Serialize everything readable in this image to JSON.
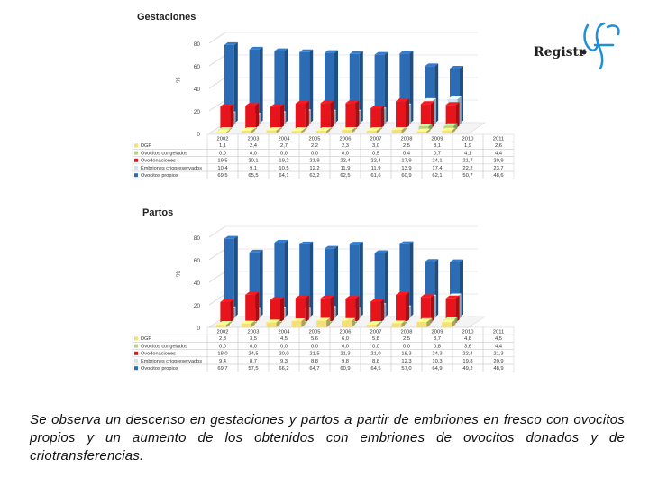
{
  "logo": {
    "text": "Registr",
    "accent": "#1f8fd6"
  },
  "caption": "Se observa un descenso en gestaciones y partos a partir de embriones en fresco con ovocitos propios y un aumento de los obtenidos con embriones de ovocitos donados y de criotransferencias.",
  "colors": {
    "DGP": "#f3e07a",
    "Ovocitos congelados": "#b5d38a",
    "Ovodonaciones": "#e8141b",
    "Embriones criopreservados": "#cfe3f3",
    "Ovocitos propios": "#2b6cb5"
  },
  "chart_data": [
    {
      "type": "bar",
      "title": "Gestaciones",
      "ylabel": "%",
      "ylim": [
        0,
        100
      ],
      "yticks": [
        0,
        20,
        40,
        60,
        80
      ],
      "categories": [
        "2002",
        "2003",
        "2004",
        "2005",
        "2006",
        "2007",
        "2008",
        "2009",
        "2010",
        "2011"
      ],
      "series": [
        {
          "name": "DGP",
          "values": [
            1.1,
            2.4,
            2.7,
            2.2,
            2.3,
            3.0,
            2.5,
            3.1,
            1.9,
            2.6
          ]
        },
        {
          "name": "Ovocitos congelados",
          "values": [
            0.0,
            0.0,
            0.0,
            0.0,
            0.0,
            0.5,
            0.4,
            0.7,
            4.1,
            4.4
          ]
        },
        {
          "name": "Ovodonaciones",
          "values": [
            19.5,
            20.1,
            19.2,
            21.9,
            22.4,
            22.4,
            17.9,
            24.1,
            21.7,
            20.9
          ]
        },
        {
          "name": "Embriones criopreservados",
          "values": [
            10.4,
            9.1,
            10.5,
            12.2,
            11.9,
            11.9,
            13.9,
            17.4,
            22.2,
            23.7
          ]
        },
        {
          "name": "Ovocitos propios",
          "values": [
            69.5,
            65.5,
            64.1,
            63.2,
            62.5,
            61.6,
            60.9,
            62.1,
            50.7,
            48.6
          ]
        }
      ]
    },
    {
      "type": "bar",
      "title": "Partos",
      "ylabel": "%",
      "ylim": [
        0,
        100
      ],
      "yticks": [
        0,
        20,
        40,
        60,
        80
      ],
      "categories": [
        "2002",
        "2003",
        "2004",
        "2005",
        "2006",
        "2007",
        "2008",
        "2009",
        "2010",
        "2011"
      ],
      "series": [
        {
          "name": "DGP",
          "values": [
            2.3,
            3.5,
            4.5,
            5.6,
            6.0,
            5.8,
            2.5,
            3.7,
            4.8,
            4.5
          ]
        },
        {
          "name": "Ovocitos congelados",
          "values": [
            0.0,
            0.0,
            0.0,
            0.0,
            0.0,
            0.0,
            0.0,
            0.8,
            3.6,
            4.4
          ]
        },
        {
          "name": "Ovodonaciones",
          "values": [
            18.0,
            24.5,
            20.0,
            21.5,
            21.3,
            21.0,
            18.3,
            24.3,
            22.4,
            21.3
          ]
        },
        {
          "name": "Embriones criopreservados",
          "values": [
            9.4,
            8.7,
            9.3,
            8.8,
            9.8,
            8.8,
            12.3,
            10.3,
            19.8,
            20.9
          ]
        },
        {
          "name": "Ovocitos propios",
          "values": [
            69.7,
            57.5,
            66.2,
            64.7,
            60.9,
            64.5,
            57.0,
            64.9,
            49.2,
            48.9
          ]
        }
      ]
    }
  ]
}
